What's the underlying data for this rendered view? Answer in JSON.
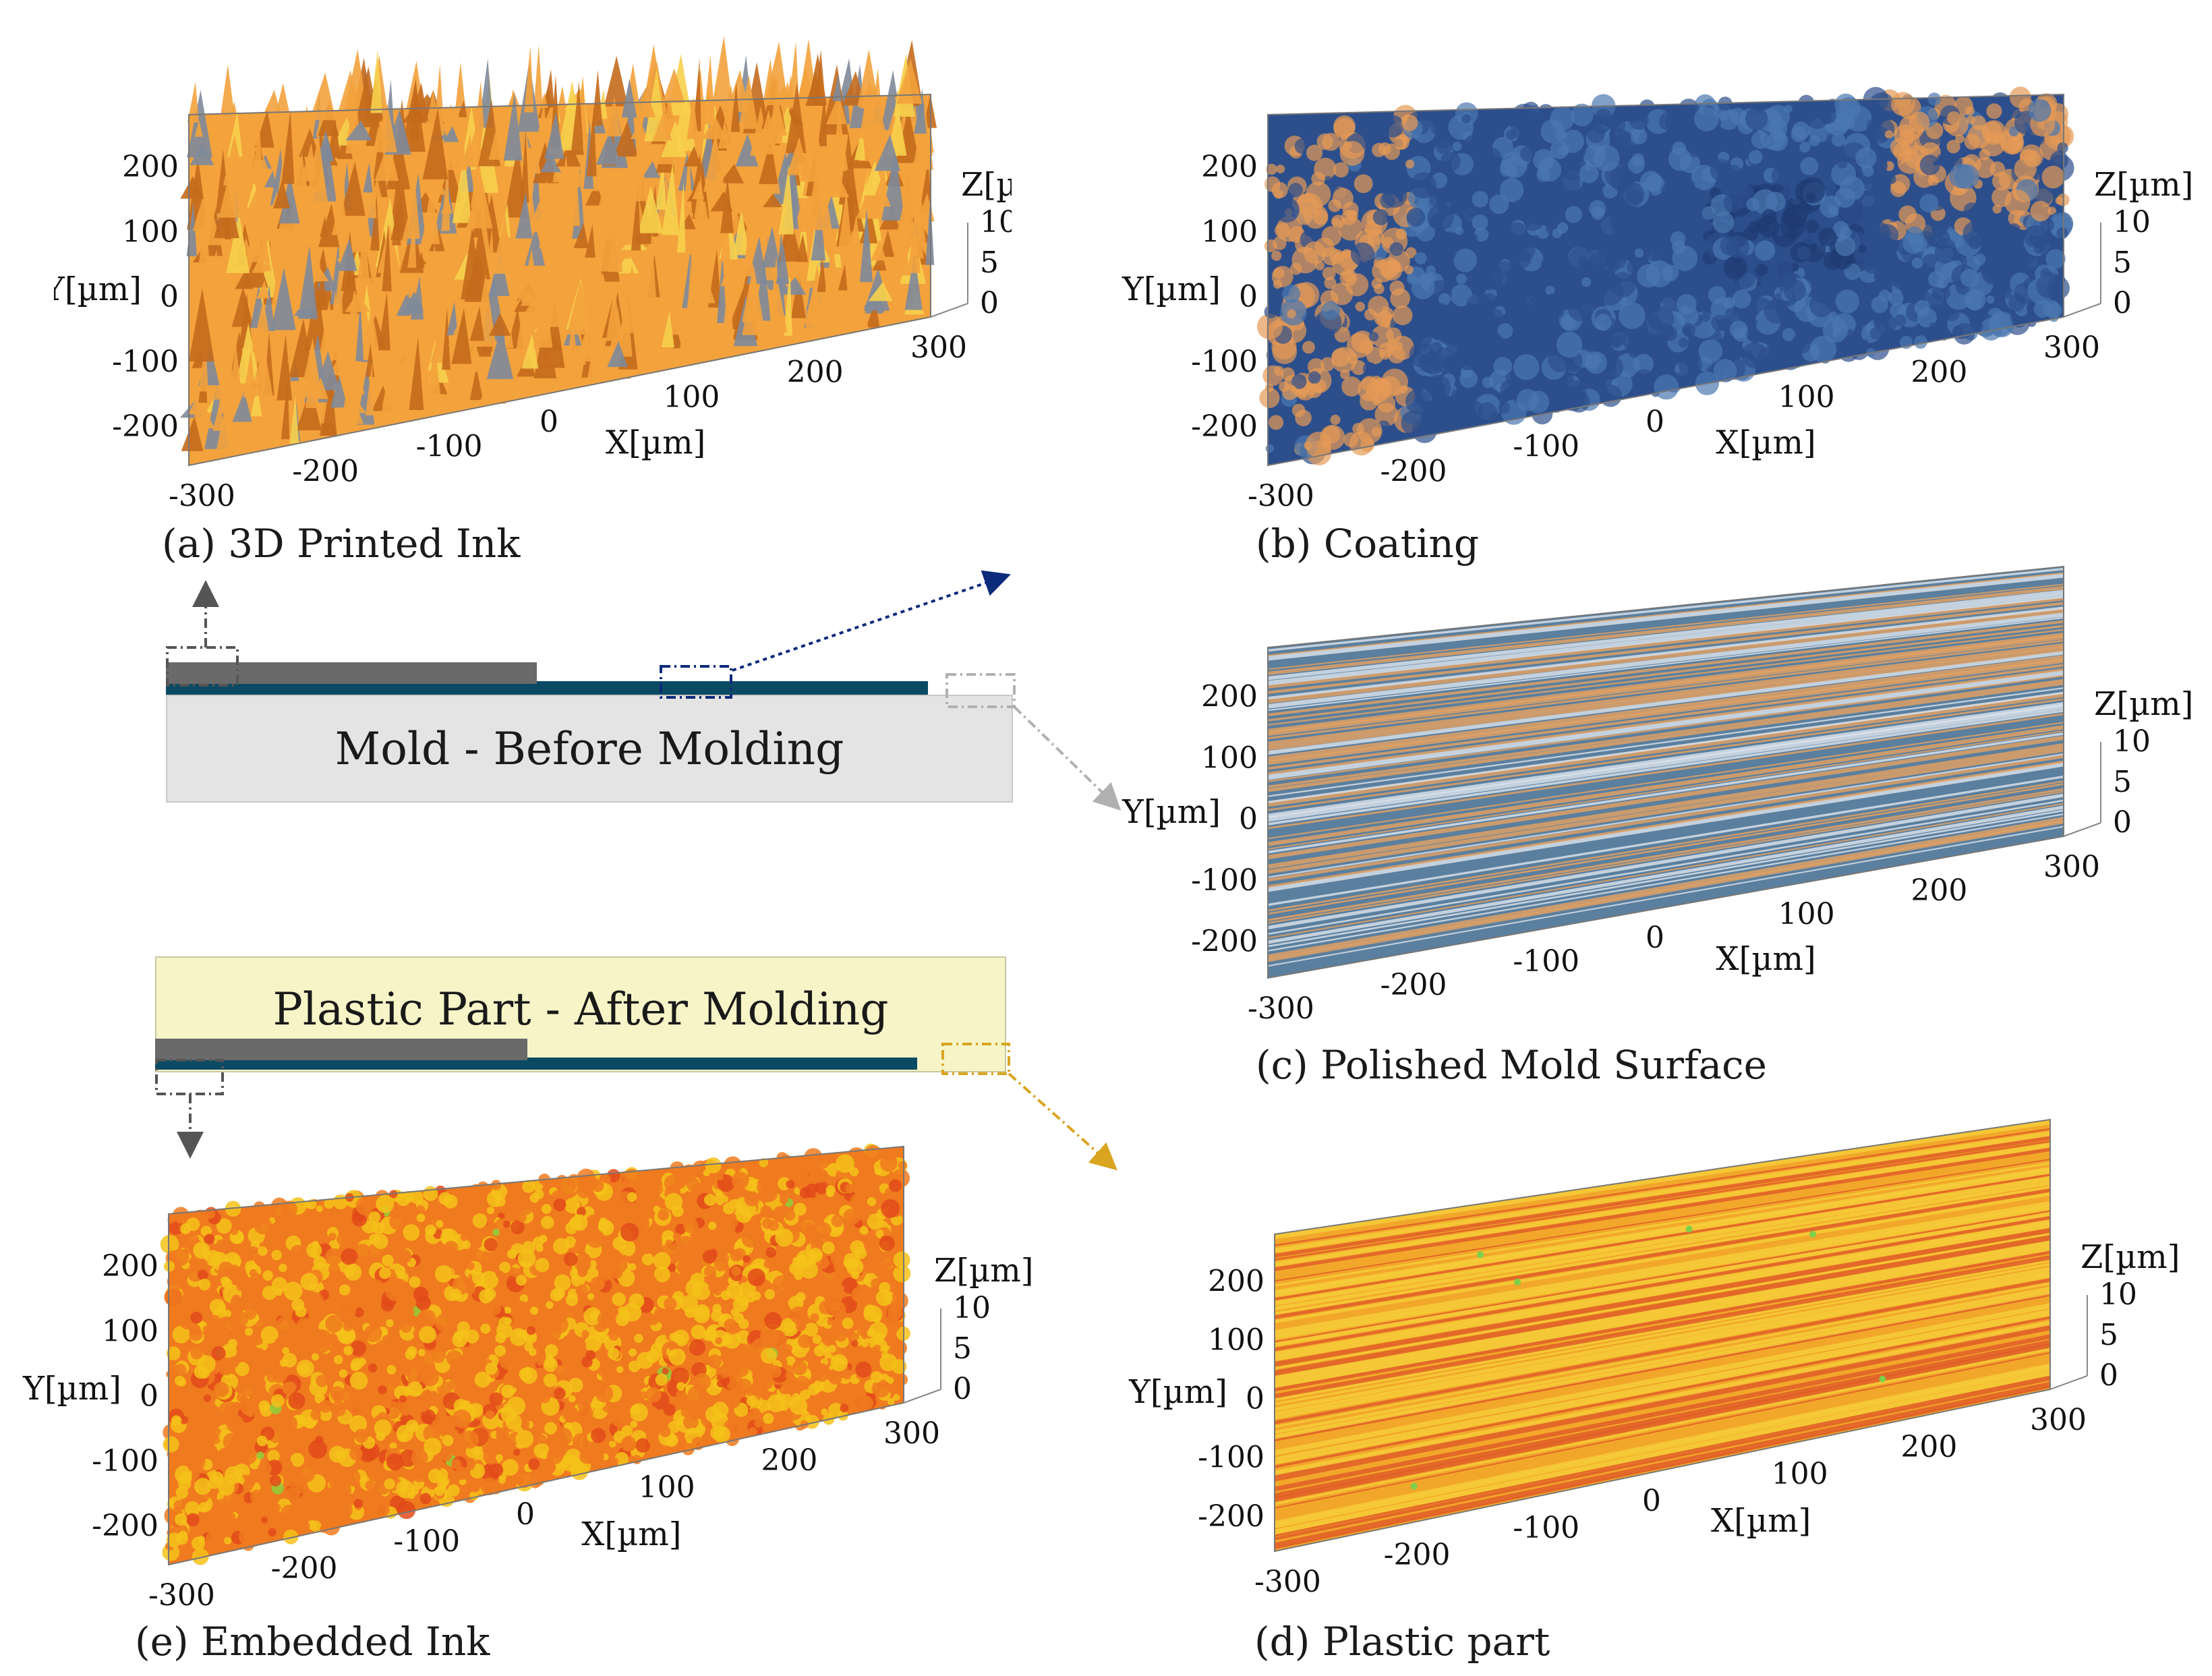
{
  "panels": [
    {
      "id": "a",
      "caption": "(a) 3D Printed Ink",
      "surface": "rough-peaks",
      "colors": [
        "#f3a23c",
        "#c46a1c",
        "#7e8a9a",
        "#f7d04c"
      ],
      "x_ticks": [
        "-300",
        "-200",
        "-100",
        "0",
        "100",
        "200",
        "300"
      ],
      "y_ticks": [
        "200",
        "100",
        "0",
        "-100",
        "-200"
      ],
      "z_ticks": [
        "10",
        "5",
        "0"
      ],
      "x_label": "X[µm]",
      "y_label": "Y[µm]",
      "z_label": "Z[µm]"
    },
    {
      "id": "b",
      "caption": "(b) Coating",
      "surface": "blue-with-orange-edges",
      "colors": [
        "#2c4f8c",
        "#4a78b0",
        "#e59a55",
        "#1f3b73"
      ],
      "x_ticks": [
        "-300",
        "-200",
        "-100",
        "0",
        "100",
        "200",
        "300"
      ],
      "y_ticks": [
        "200",
        "100",
        "0",
        "-100",
        "-200"
      ],
      "z_ticks": [
        "10",
        "5",
        "0"
      ],
      "x_label": "X[µm]",
      "y_label": "Y[µm]",
      "z_label": "Z[µm]"
    },
    {
      "id": "c",
      "caption": "(c) Polished Mold Surface",
      "surface": "horizontal-streaks",
      "colors": [
        "#5b7f9e",
        "#e7a361",
        "#dfe6ee"
      ],
      "x_ticks": [
        "-300",
        "-200",
        "-100",
        "0",
        "100",
        "200",
        "300"
      ],
      "y_ticks": [
        "200",
        "100",
        "0",
        "-100",
        "-200"
      ],
      "z_ticks": [
        "10",
        "5",
        "0"
      ],
      "x_label": "X[µm]",
      "y_label": "Y[µm]",
      "z_label": "Z[µm]"
    },
    {
      "id": "e",
      "caption": "(e) Embedded Ink",
      "surface": "orange-yellow-grain",
      "colors": [
        "#f07a1e",
        "#f5c21a",
        "#e24a1a",
        "#8fcf3a"
      ],
      "x_ticks": [
        "-300",
        "-200",
        "-100",
        "0",
        "100",
        "200",
        "300"
      ],
      "y_ticks": [
        "200",
        "100",
        "0",
        "-100",
        "-200"
      ],
      "z_ticks": [
        "10",
        "5",
        "0"
      ],
      "x_label": "X[µm]",
      "y_label": "Y[µm]",
      "z_label": "Z[µm]"
    },
    {
      "id": "d",
      "caption": "(d) Plastic part",
      "surface": "yellow-streaks",
      "colors": [
        "#f2a72a",
        "#f6cf3a",
        "#e05a28",
        "#7ed04a"
      ],
      "x_ticks": [
        "-300",
        "-200",
        "-100",
        "0",
        "100",
        "200",
        "300"
      ],
      "y_ticks": [
        "200",
        "100",
        "0",
        "-100",
        "-200"
      ],
      "z_ticks": [
        "10",
        "5",
        "0"
      ],
      "x_label": "X[µm]",
      "y_label": "Y[µm]",
      "z_label": "Z[µm]"
    }
  ],
  "diagrams": {
    "mold": {
      "label": "Mold - Before Molding",
      "mold_color": "#e4e4e4",
      "ink_color": "#6a6a6a",
      "coating_color": "#0b4a63"
    },
    "plastic": {
      "label": "Plastic Part - After Molding",
      "plastic_color": "#f7f5c8",
      "ink_color": "#6a6a6a",
      "coating_color": "#0b4a63"
    }
  },
  "arrow_colors": {
    "ink": "#555555",
    "coating": "#0b2a7a",
    "mold": "#b0b0b0",
    "plastic": "#d9a520"
  }
}
